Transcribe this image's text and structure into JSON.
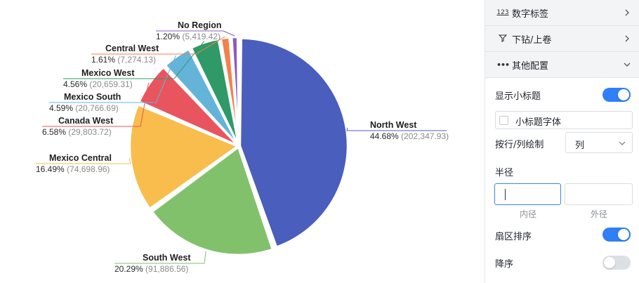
{
  "chart_data": {
    "type": "pie",
    "slices": [
      {
        "name": "North West",
        "percent": "44.68%",
        "value": "(202,347.93)",
        "raw": 202347.93,
        "color": "#4a5ebd"
      },
      {
        "name": "South West",
        "percent": "20.29%",
        "value": "(91,886.56)",
        "raw": 91886.56,
        "color": "#82c16b"
      },
      {
        "name": "Mexico Central",
        "percent": "16.49%",
        "value": "(74,698.96)",
        "raw": 74698.96,
        "color": "#f8bd4c"
      },
      {
        "name": "Canada West",
        "percent": "6.58%",
        "value": "(29,803.72)",
        "raw": 29803.72,
        "color": "#e9555e"
      },
      {
        "name": "Mexico South",
        "percent": "4.59%",
        "value": "(20,766.69)",
        "raw": 20766.69,
        "color": "#64b4da"
      },
      {
        "name": "Mexico West",
        "percent": "4.56%",
        "value": "(20,659.31)",
        "raw": 20659.31,
        "color": "#2f9a67"
      },
      {
        "name": "Central West",
        "percent": "1.61%",
        "value": "(7,274.13)",
        "raw": 7274.13,
        "color": "#f2814a"
      },
      {
        "name": "No Region",
        "percent": "1.20%",
        "value": "(5,419.42)",
        "raw": 5419.42,
        "color": "#8a5bc6"
      }
    ]
  },
  "panel": {
    "data_labels": {
      "icon": "123",
      "label": "数字标签"
    },
    "drill": {
      "icon": "drill-icon",
      "label": "下钻/上卷"
    },
    "other": {
      "icon": "•••",
      "label": "其他配置"
    },
    "show_subtitle": {
      "label": "显示小标题",
      "on": true
    },
    "subtitle_font": {
      "label": "小标题字体"
    },
    "draw_by": {
      "label": "按行/列绘制",
      "value": "列"
    },
    "radius": {
      "label": "半径",
      "inner_caption": "内径",
      "outer_caption": "外径",
      "inner_value": "",
      "outer_value": ""
    },
    "sector_sort": {
      "label": "扇区排序",
      "on": true
    },
    "descending": {
      "label": "降序",
      "on": false
    }
  }
}
